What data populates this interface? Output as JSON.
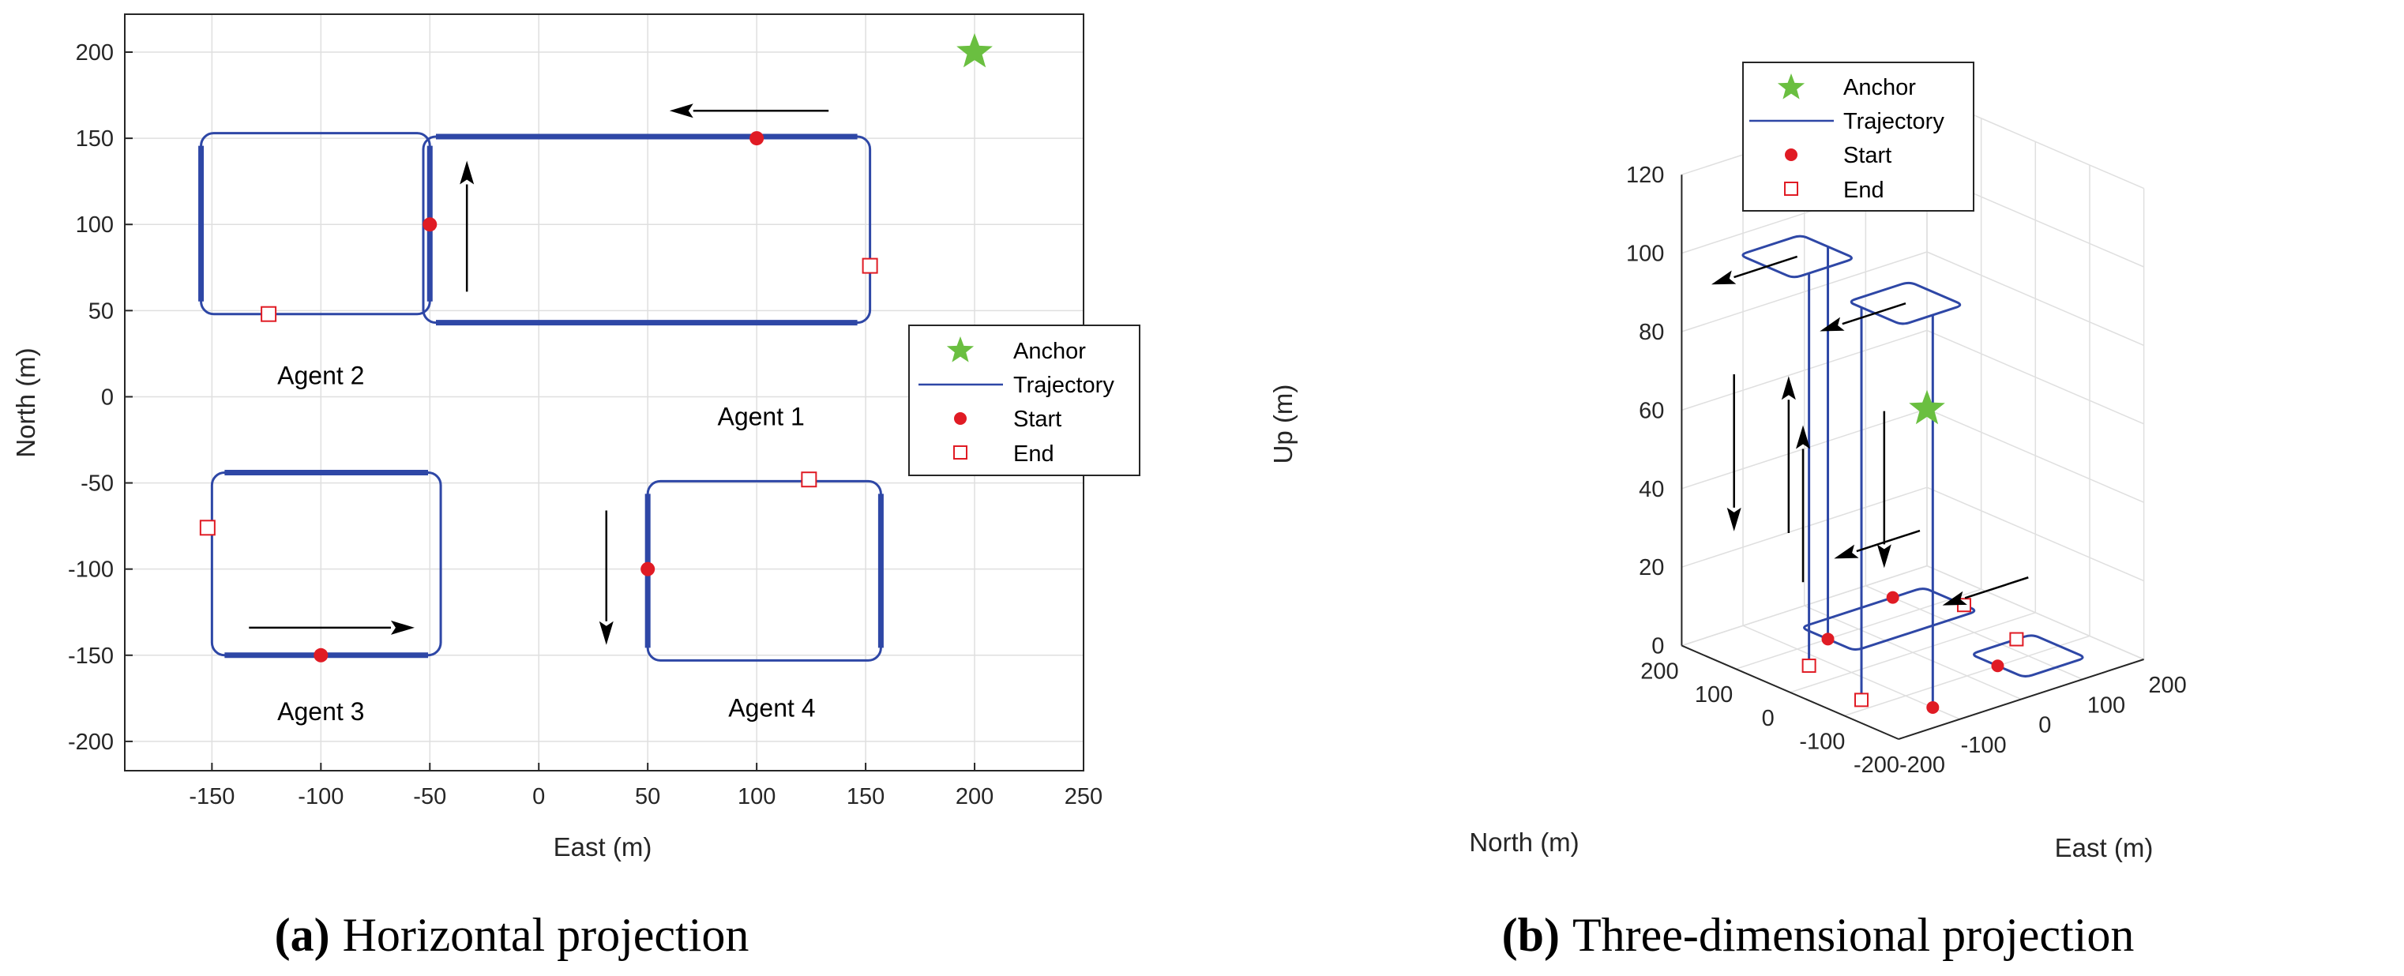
{
  "colors": {
    "anchor": "#6abf40",
    "trajectory": "#2e47a6",
    "start": "#e01b24",
    "end": "#e01b24",
    "arrow": "#000000"
  },
  "legend": {
    "anchor": "Anchor",
    "trajectory": "Trajectory",
    "start": "Start",
    "end": "End"
  },
  "chart_data": [
    {
      "type": "line",
      "id": "a",
      "caption_label": "(a)",
      "caption_text": "Horizontal projection",
      "xlabel": "East (m)",
      "ylabel": "North (m)",
      "xlim": [
        -190,
        250
      ],
      "ylim": [
        -217,
        222
      ],
      "xticks": [
        -150,
        -100,
        -50,
        0,
        50,
        100,
        150,
        200,
        250
      ],
      "yticks": [
        -200,
        -150,
        -100,
        -50,
        0,
        50,
        100,
        150,
        200
      ],
      "xtick_labels": [
        "-150",
        "-100",
        "-50",
        "0",
        "50",
        "100",
        "150",
        "200",
        "250"
      ],
      "ytick_labels": [
        "-200",
        "-150",
        "-100",
        "-50",
        "0",
        "50",
        "100",
        "150",
        "200"
      ],
      "grid": true,
      "legend_position": "right",
      "anchor": {
        "east": 200,
        "north": 200
      },
      "agents": [
        {
          "name": "Agent 1",
          "east": [
            -53,
            152
          ],
          "north": [
            43,
            151
          ],
          "thick_edges": [
            "top",
            "bottom"
          ],
          "start": [
            100,
            150
          ],
          "end": [
            152,
            76
          ],
          "label_at": [
            102,
            -12
          ],
          "arrow_from": [
            133,
            166
          ],
          "arrow_to": [
            60,
            166
          ]
        },
        {
          "name": "Agent 2",
          "east": [
            -155,
            -50
          ],
          "north": [
            48,
            153
          ],
          "thick_edges": [
            "left",
            "right"
          ],
          "start": [
            -50,
            100
          ],
          "end": [
            -124,
            48
          ],
          "label_at": [
            -100,
            12
          ],
          "arrow_from": [
            -33,
            61
          ],
          "arrow_to": [
            -33,
            137
          ]
        },
        {
          "name": "Agent 3",
          "east": [
            -150,
            -45
          ],
          "north": [
            -150,
            -44
          ],
          "thick_edges": [
            "top",
            "bottom"
          ],
          "start": [
            -100,
            -150
          ],
          "end": [
            -152,
            -76
          ],
          "label_at": [
            -100,
            -183
          ],
          "arrow_from": [
            -133,
            -134
          ],
          "arrow_to": [
            -57,
            -134
          ]
        },
        {
          "name": "Agent 4",
          "east": [
            50,
            157
          ],
          "north": [
            -153,
            -49
          ],
          "thick_edges": [
            "left",
            "right"
          ],
          "start": [
            50,
            -100
          ],
          "end": [
            124,
            -48
          ],
          "label_at": [
            107,
            -181
          ],
          "arrow_from": [
            31,
            -66
          ],
          "arrow_to": [
            31,
            -144
          ]
        }
      ]
    },
    {
      "type": "line",
      "id": "b",
      "caption_label": "(b)",
      "caption_text": "Three-dimensional projection",
      "xlabel": "East (m)",
      "ylabel": "North (m)",
      "zlabel": "Up (m)",
      "xlim": [
        -200,
        200
      ],
      "ylim": [
        -200,
        200
      ],
      "zlim": [
        0,
        120
      ],
      "xticks": [
        -200,
        -100,
        0,
        100,
        200
      ],
      "yticks": [
        -200,
        -100,
        0,
        100,
        200
      ],
      "zticks": [
        0,
        20,
        40,
        60,
        80,
        100,
        120
      ],
      "xtick_labels": [
        "-200",
        "-100",
        "0",
        "100",
        "200"
      ],
      "ytick_labels": [
        "-200",
        "-100",
        "0",
        "100",
        "200"
      ],
      "ztick_labels": [
        "0",
        "20",
        "40",
        "60",
        "80",
        "100",
        "120"
      ],
      "grid": true,
      "legend_position": "top",
      "anchor": {
        "east": 200,
        "north": 200,
        "up": 40
      },
      "loops": [
        {
          "name": "Agent 1",
          "east": [
            -50,
            150
          ],
          "north": [
            50,
            150
          ],
          "up": 0,
          "start": [
            100,
            150
          ],
          "end": [
            150,
            75
          ]
        },
        {
          "name": "Agent 4",
          "east": [
            50,
            150
          ],
          "north": [
            -150,
            -50
          ],
          "up": 0,
          "start": [
            50,
            -100
          ],
          "end": [
            125,
            -50
          ]
        },
        {
          "name": "Agent 2",
          "east": [
            -150,
            -50
          ],
          "north": [
            50,
            150
          ],
          "up": 100,
          "start": [
            -50,
            100
          ],
          "end": [
            -125,
            50
          ]
        },
        {
          "name": "Agent 3",
          "east": [
            -150,
            -50
          ],
          "north": [
            -150,
            -50
          ],
          "up": 100,
          "start": [
            -100,
            -150
          ],
          "end": [
            -150,
            -75
          ]
        }
      ]
    }
  ]
}
